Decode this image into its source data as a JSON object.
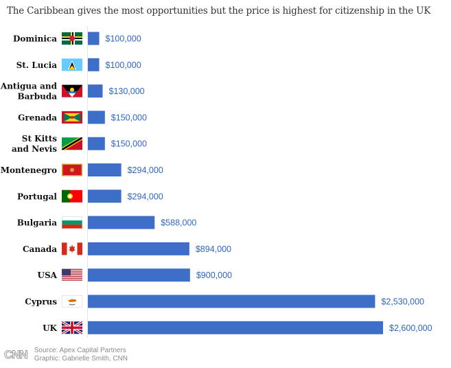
{
  "subtitle": "The Caribbean gives the most opportunities but the price is highest for citizenship in the UK",
  "chart_data": {
    "type": "bar",
    "orientation": "horizontal",
    "title": "",
    "subtitle": "The Caribbean gives the most opportunities but the price is highest for citizenship in the UK",
    "categories": [
      [
        "Dominica"
      ],
      [
        "St. Lucia"
      ],
      [
        "Antigua and",
        "Barbuda"
      ],
      [
        "Grenada"
      ],
      [
        "St Kitts",
        "and Nevis"
      ],
      [
        "Montenegro"
      ],
      [
        "Portugal"
      ],
      [
        "Bulgaria"
      ],
      [
        "Canada"
      ],
      [
        "USA"
      ],
      [
        "Cyprus"
      ],
      [
        "UK"
      ]
    ],
    "values": [
      100000,
      100000,
      130000,
      150000,
      150000,
      294000,
      294000,
      588000,
      894000,
      900000,
      2530000,
      2600000
    ],
    "value_labels": [
      "$100,000",
      "$100,000",
      "$130,000",
      "$150,000",
      "$150,000",
      "$294,000",
      "$294,000",
      "$588,000",
      "$894,000",
      "$900,000",
      "$2,530,000",
      "$2,600,000"
    ],
    "flag_icons": [
      "dominica-flag-icon",
      "st-lucia-flag-icon",
      "antigua-barbuda-flag-icon",
      "grenada-flag-icon",
      "st-kitts-nevis-flag-icon",
      "montenegro-flag-icon",
      "portugal-flag-icon",
      "bulgaria-flag-icon",
      "canada-flag-icon",
      "usa-flag-icon",
      "cyprus-flag-icon",
      "uk-flag-icon"
    ],
    "bar_color": "#3d6fc8",
    "label_color": "#2f66c4",
    "xlim": [
      0,
      2600000
    ],
    "grid": false
  },
  "footer": {
    "logo": "CNN",
    "source": "Source: Apex Capital Partners",
    "graphic": "Graphic: Gabrielle Smith, CNN"
  }
}
